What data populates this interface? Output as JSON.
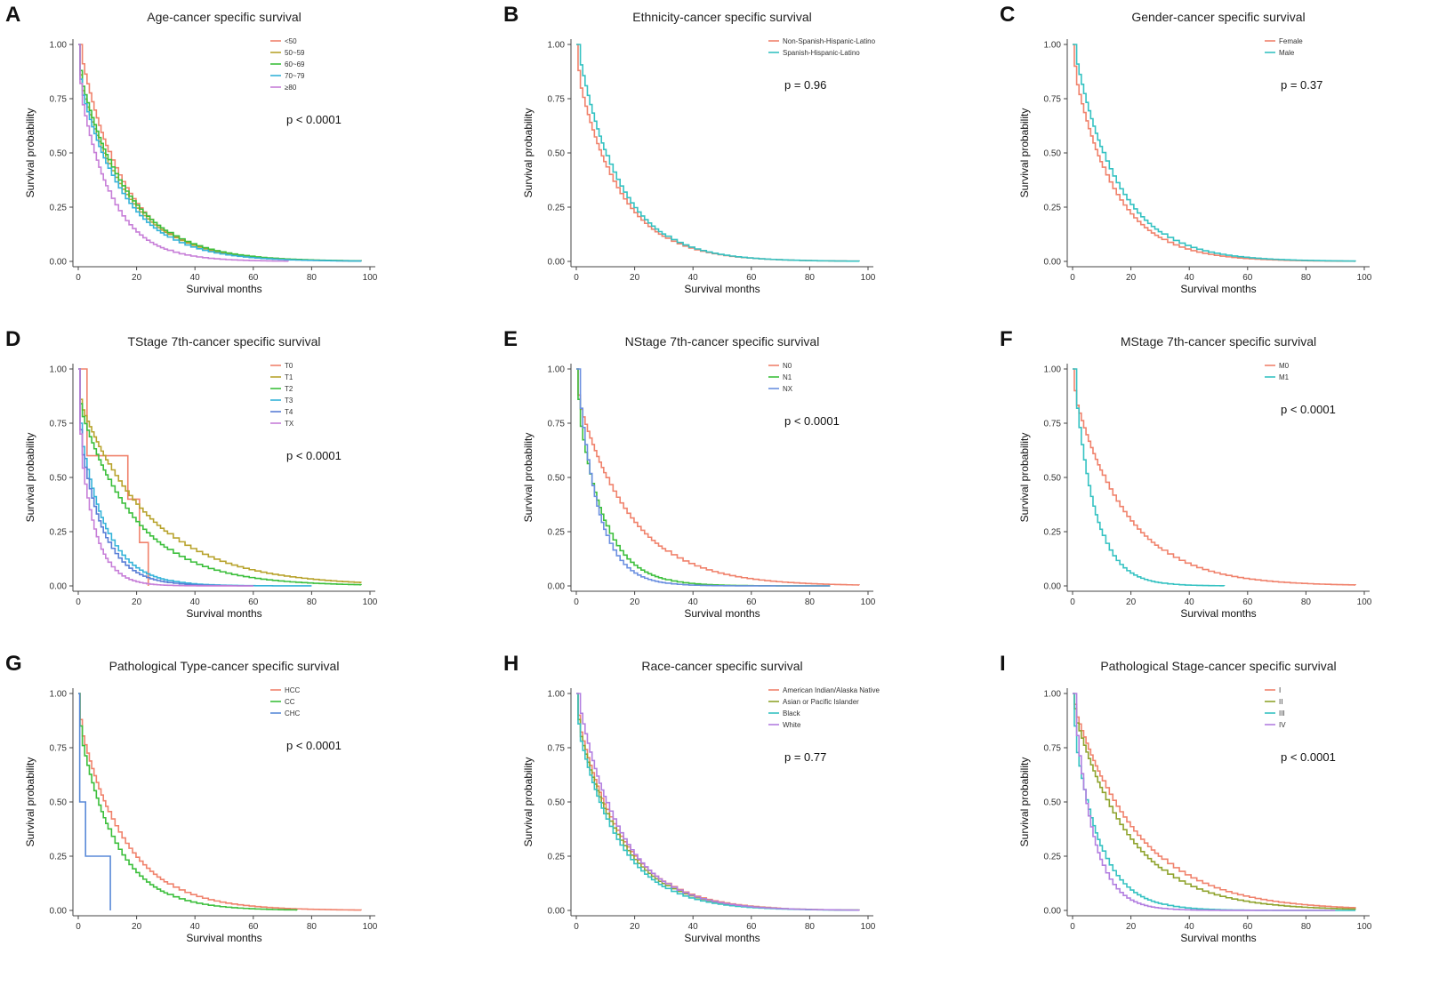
{
  "figure": {
    "xlabel": "Survival months",
    "ylabel": "Survival probability"
  },
  "chart_data": [
    {
      "id": "A",
      "type": "line",
      "title": "Age-cancer specific survival",
      "xlabel": "Survival months",
      "ylabel": "Survival probability",
      "xlim": [
        0,
        100
      ],
      "ylim": [
        0,
        1
      ],
      "xticks": [
        "0",
        "20",
        "40",
        "60",
        "80",
        "100"
      ],
      "yticks": [
        "0.00",
        "0.25",
        "0.50",
        "0.75",
        "1.00"
      ],
      "pvalue": "p < 0.0001",
      "legend_position": "top-right",
      "series": [
        {
          "name": "<50",
          "color": "#f0826c",
          "model": {
            "kind": "exp",
            "tau": 15.0,
            "start": 1.0,
            "end": 97
          }
        },
        {
          "name": "50~59",
          "color": "#b8a32d",
          "model": {
            "kind": "exp",
            "tau": 15.8,
            "start": 0.86,
            "end": 97
          }
        },
        {
          "name": "60~69",
          "color": "#3cbf3c",
          "model": {
            "kind": "exp",
            "tau": 16.2,
            "start": 0.88,
            "end": 97
          }
        },
        {
          "name": "70~79",
          "color": "#35b3d9",
          "model": {
            "kind": "exp",
            "tau": 15.2,
            "start": 0.84,
            "end": 97
          }
        },
        {
          "name": "≥80",
          "color": "#c77fd8",
          "model": {
            "kind": "exp",
            "tau": 11.0,
            "start": 0.82,
            "end": 72
          }
        }
      ]
    },
    {
      "id": "B",
      "type": "line",
      "title": "Ethnicity-cancer specific survival",
      "xlabel": "Survival months",
      "ylabel": "Survival probability",
      "xlim": [
        0,
        100
      ],
      "ylim": [
        0,
        1
      ],
      "xticks": [
        "0",
        "20",
        "40",
        "60",
        "80",
        "100"
      ],
      "yticks": [
        "0.00",
        "0.25",
        "0.50",
        "0.75",
        "1.00"
      ],
      "pvalue": "p = 0.96",
      "legend_position": "top-right",
      "series": [
        {
          "name": "Non-Spanish-Hispanic-Latino",
          "color": "#f0826c",
          "model": {
            "kind": "exp",
            "tau": 14.5,
            "start": 0.88,
            "end": 97
          }
        },
        {
          "name": "Spanish-Hispanic-Latino",
          "color": "#35c2c2",
          "model": {
            "kind": "exp",
            "tau": 14.2,
            "start": 1.0,
            "end": 97
          }
        }
      ]
    },
    {
      "id": "C",
      "type": "line",
      "title": "Gender-cancer specific survival",
      "xlabel": "Survival months",
      "ylabel": "Survival probability",
      "xlim": [
        0,
        100
      ],
      "ylim": [
        0,
        1
      ],
      "xticks": [
        "0",
        "20",
        "40",
        "60",
        "80",
        "100"
      ],
      "yticks": [
        "0.00",
        "0.25",
        "0.50",
        "0.75",
        "1.00"
      ],
      "pvalue": "p = 0.37",
      "legend_position": "top-right",
      "series": [
        {
          "name": "Female",
          "color": "#f0826c",
          "model": {
            "kind": "exp",
            "tau": 14.0,
            "start": 0.9,
            "end": 97
          }
        },
        {
          "name": "Male",
          "color": "#35c2c2",
          "model": {
            "kind": "exp",
            "tau": 14.8,
            "start": 1.0,
            "end": 97
          }
        }
      ]
    },
    {
      "id": "D",
      "type": "line",
      "title": "TStage 7th-cancer specific survival",
      "xlabel": "Survival months",
      "ylabel": "Survival probability",
      "xlim": [
        0,
        100
      ],
      "ylim": [
        0,
        1
      ],
      "xticks": [
        "0",
        "20",
        "40",
        "60",
        "80",
        "100"
      ],
      "yticks": [
        "0.00",
        "0.25",
        "0.50",
        "0.75",
        "1.00"
      ],
      "pvalue": "p < 0.0001",
      "legend_position": "top-right",
      "series": [
        {
          "name": "T0",
          "color": "#f0826c",
          "model": {
            "kind": "steps",
            "points": [
              [
                0,
                1.0
              ],
              [
                3,
                0.6
              ],
              [
                17,
                0.4
              ],
              [
                21,
                0.2
              ],
              [
                24,
                0.0
              ]
            ]
          }
        },
        {
          "name": "T1",
          "color": "#b8a32d",
          "model": {
            "kind": "exp",
            "tau": 24.0,
            "start": 0.86,
            "end": 97
          }
        },
        {
          "name": "T2",
          "color": "#3cbf3c",
          "model": {
            "kind": "exp",
            "tau": 19.0,
            "start": 0.84,
            "end": 97
          }
        },
        {
          "name": "T3",
          "color": "#35b3d9",
          "model": {
            "kind": "exp",
            "tau": 9.0,
            "start": 0.75,
            "end": 80
          }
        },
        {
          "name": "T4",
          "color": "#5a7fd6",
          "model": {
            "kind": "exp",
            "tau": 8.0,
            "start": 0.72,
            "end": 60
          }
        },
        {
          "name": "TX",
          "color": "#c77fd8",
          "model": {
            "kind": "exp",
            "tau": 5.5,
            "start": 0.7,
            "end": 60
          }
        }
      ]
    },
    {
      "id": "E",
      "type": "line",
      "title": "NStage 7th-cancer specific survival",
      "xlabel": "Survival months",
      "ylabel": "Survival probability",
      "xlim": [
        0,
        100
      ],
      "ylim": [
        0,
        1
      ],
      "xticks": [
        "0",
        "20",
        "40",
        "60",
        "80",
        "100"
      ],
      "yticks": [
        "0.00",
        "0.25",
        "0.50",
        "0.75",
        "1.00"
      ],
      "pvalue": "p < 0.0001",
      "legend_position": "top-right",
      "series": [
        {
          "name": "N0",
          "color": "#f0826c",
          "model": {
            "kind": "exp",
            "tau": 18.0,
            "start": 0.88,
            "end": 97
          }
        },
        {
          "name": "N1",
          "color": "#3cbf3c",
          "model": {
            "kind": "exp",
            "tau": 9.0,
            "start": 0.86,
            "end": 87
          }
        },
        {
          "name": "NX",
          "color": "#6b8fe0",
          "model": {
            "kind": "exp",
            "tau": 7.0,
            "start": 1.0,
            "end": 87
          }
        }
      ]
    },
    {
      "id": "F",
      "type": "line",
      "title": "MStage 7th-cancer specific survival",
      "xlabel": "Survival months",
      "ylabel": "Survival probability",
      "xlim": [
        0,
        100
      ],
      "ylim": [
        0,
        1
      ],
      "xticks": [
        "0",
        "20",
        "40",
        "60",
        "80",
        "100"
      ],
      "yticks": [
        "0.00",
        "0.25",
        "0.50",
        "0.75",
        "1.00"
      ],
      "pvalue": "p < 0.0001",
      "legend_position": "top-right",
      "series": [
        {
          "name": "M0",
          "color": "#f0826c",
          "model": {
            "kind": "exp",
            "tau": 18.0,
            "start": 0.9,
            "end": 97
          }
        },
        {
          "name": "M1",
          "color": "#35c2c2",
          "model": {
            "kind": "exp",
            "tau": 7.0,
            "start": 1.0,
            "end": 52
          }
        }
      ]
    },
    {
      "id": "G",
      "type": "line",
      "title": "Pathological Type-cancer specific survival",
      "xlabel": "Survival months",
      "ylabel": "Survival probability",
      "xlim": [
        0,
        100
      ],
      "ylim": [
        0,
        1
      ],
      "xticks": [
        "0",
        "20",
        "40",
        "60",
        "80",
        "100"
      ],
      "yticks": [
        "0.00",
        "0.25",
        "0.50",
        "0.75",
        "1.00"
      ],
      "pvalue": "p < 0.0001",
      "legend_position": "top-right",
      "series": [
        {
          "name": "HCC",
          "color": "#f0826c",
          "model": {
            "kind": "exp",
            "tau": 15.5,
            "start": 0.88,
            "end": 97
          }
        },
        {
          "name": "CC",
          "color": "#3cbf3c",
          "model": {
            "kind": "exp",
            "tau": 12.5,
            "start": 0.85,
            "end": 75
          }
        },
        {
          "name": "CHC",
          "color": "#5a8ad8",
          "model": {
            "kind": "steps",
            "points": [
              [
                0,
                1.0
              ],
              [
                0.5,
                0.5
              ],
              [
                2.5,
                0.25
              ],
              [
                11,
                0.0
              ]
            ]
          }
        }
      ]
    },
    {
      "id": "H",
      "type": "line",
      "title": "Race-cancer specific survival",
      "xlabel": "Survival months",
      "ylabel": "Survival probability",
      "xlim": [
        0,
        100
      ],
      "ylim": [
        0,
        1
      ],
      "xticks": [
        "0",
        "20",
        "40",
        "60",
        "80",
        "100"
      ],
      "yticks": [
        "0.00",
        "0.25",
        "0.50",
        "0.75",
        "1.00"
      ],
      "pvalue": "p = 0.77",
      "legend_position": "top-right",
      "series": [
        {
          "name": "American Indian/Alaska Native",
          "color": "#f0826c",
          "model": {
            "kind": "exp",
            "tau": 15.5,
            "start": 0.9,
            "end": 70
          }
        },
        {
          "name": "Asian or Pacific Islander",
          "color": "#8fa32d",
          "model": {
            "kind": "exp",
            "tau": 15.0,
            "start": 0.88,
            "end": 97
          }
        },
        {
          "name": "Black",
          "color": "#35c2c2",
          "model": {
            "kind": "exp",
            "tau": 14.3,
            "start": 0.86,
            "end": 97
          }
        },
        {
          "name": "White",
          "color": "#b27fe0",
          "model": {
            "kind": "exp",
            "tau": 14.6,
            "start": 1.0,
            "end": 97
          }
        }
      ]
    },
    {
      "id": "I",
      "type": "line",
      "title": "Pathological Stage-cancer specific survival",
      "xlabel": "Survival months",
      "ylabel": "Survival probability",
      "xlim": [
        0,
        100
      ],
      "ylim": [
        0,
        1
      ],
      "xticks": [
        "0",
        "20",
        "40",
        "60",
        "80",
        "100"
      ],
      "yticks": [
        "0.00",
        "0.25",
        "0.50",
        "0.75",
        "1.00"
      ],
      "pvalue": "p < 0.0001",
      "legend_position": "top-right",
      "series": [
        {
          "name": "I",
          "color": "#f0826c",
          "model": {
            "kind": "exp",
            "tau": 22.0,
            "start": 0.95,
            "end": 97
          }
        },
        {
          "name": "II",
          "color": "#8fa32d",
          "model": {
            "kind": "exp",
            "tau": 19.0,
            "start": 0.93,
            "end": 97
          }
        },
        {
          "name": "III",
          "color": "#35c2c2",
          "model": {
            "kind": "exp",
            "tau": 9.0,
            "start": 0.85,
            "end": 97
          }
        },
        {
          "name": "IV",
          "color": "#b27fe0",
          "model": {
            "kind": "exp",
            "tau": 6.5,
            "start": 1.0,
            "end": 90
          }
        }
      ]
    }
  ]
}
